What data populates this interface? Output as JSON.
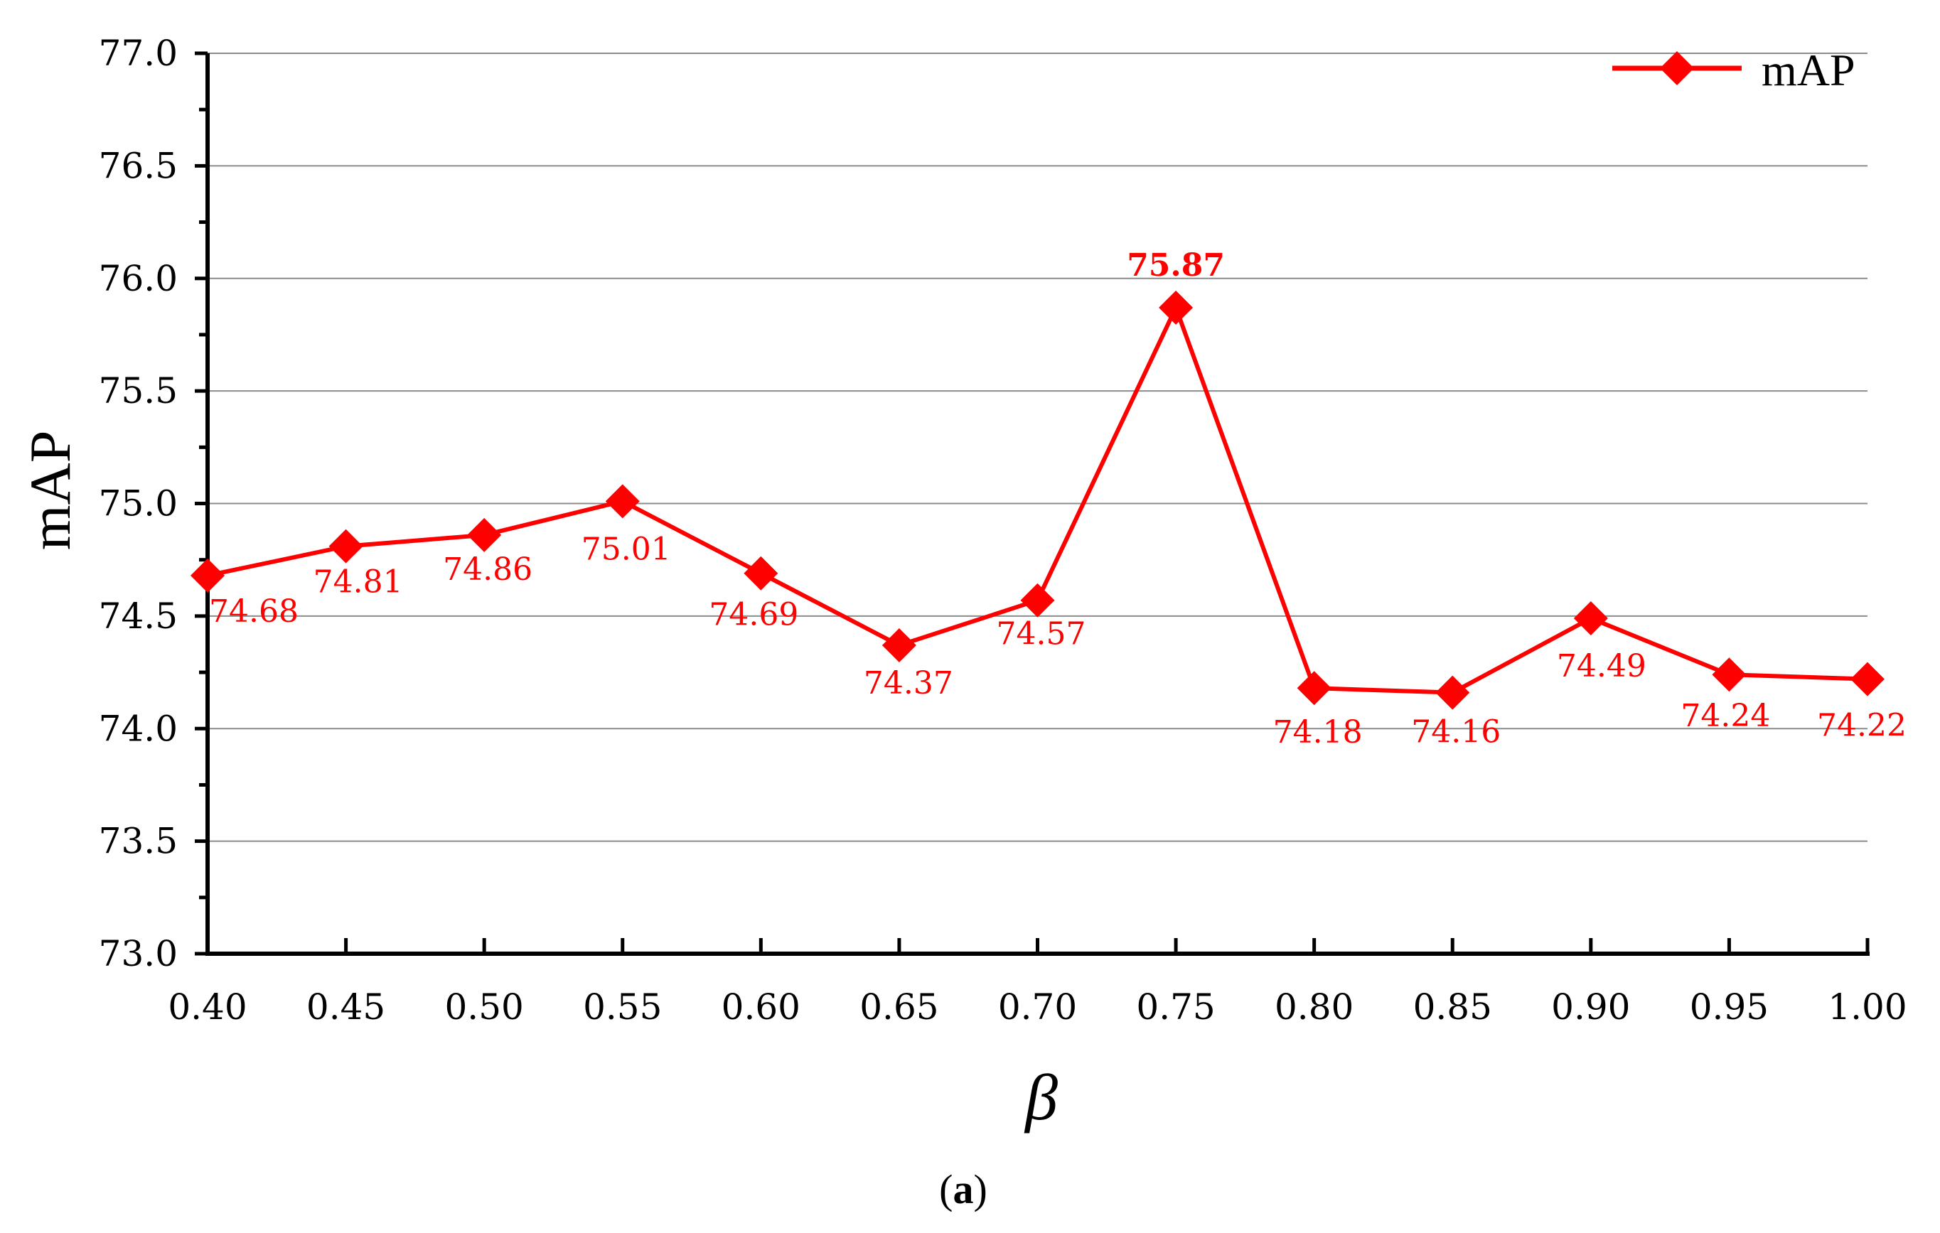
{
  "caption": {
    "open": "(",
    "letter": "a",
    "close": ")"
  },
  "chart_data": {
    "type": "line",
    "title": "",
    "xlabel": "β",
    "ylabel": "mAP",
    "x": [
      0.4,
      0.45,
      0.5,
      0.55,
      0.6,
      0.65,
      0.7,
      0.75,
      0.8,
      0.85,
      0.9,
      0.95,
      1.0
    ],
    "x_tick_labels": [
      "0.40",
      "0.45",
      "0.50",
      "0.55",
      "0.60",
      "0.65",
      "0.70",
      "0.75",
      "0.80",
      "0.85",
      "0.90",
      "0.95",
      "1.00"
    ],
    "xlim": [
      0.4,
      1.0
    ],
    "ylim": [
      73.0,
      77.0
    ],
    "y_ticks": [
      73.0,
      73.5,
      74.0,
      74.5,
      75.0,
      75.5,
      76.0,
      76.5,
      77.0
    ],
    "y_tick_labels": [
      "73.0",
      "73.5",
      "74.0",
      "74.5",
      "75.0",
      "75.5",
      "76.0",
      "76.5",
      "77.0"
    ],
    "grid": true,
    "legend_position": "top-right",
    "series": [
      {
        "name": "mAP",
        "color": "#ff0000",
        "marker": "diamond",
        "values": [
          74.68,
          74.81,
          74.86,
          75.01,
          74.69,
          74.37,
          74.57,
          75.87,
          74.18,
          74.16,
          74.49,
          74.24,
          74.22
        ],
        "value_labels": [
          "74.68",
          "74.81",
          "74.86",
          "75.01",
          "74.69",
          "74.37",
          "74.57",
          "75.87",
          "74.18",
          "74.16",
          "74.49",
          "74.24",
          "74.22"
        ]
      }
    ]
  }
}
